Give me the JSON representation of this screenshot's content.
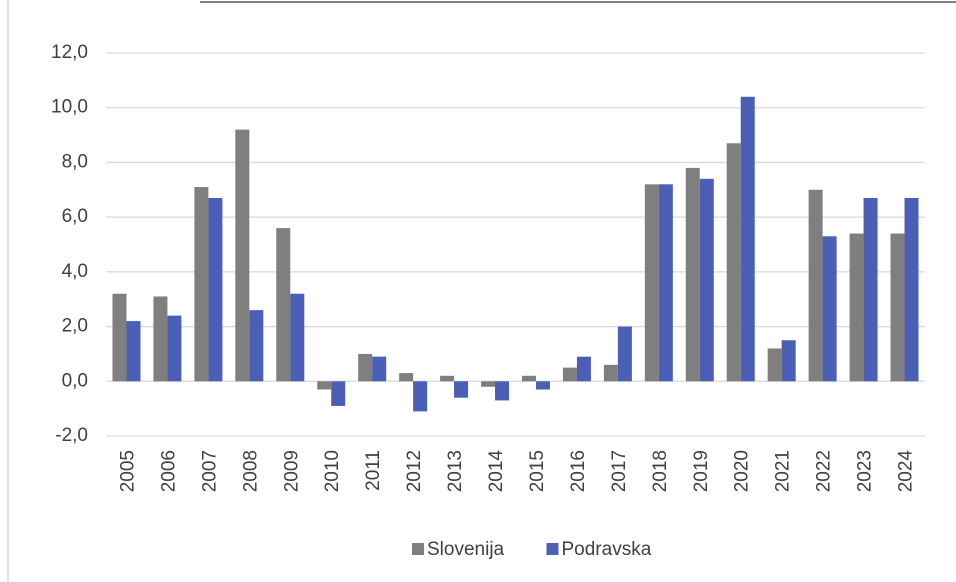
{
  "chart_data": {
    "type": "bar",
    "categories": [
      "2005",
      "2006",
      "2007",
      "2008",
      "2009",
      "2010",
      "2011",
      "2012",
      "2013",
      "2014",
      "2015",
      "2016",
      "2017",
      "2018",
      "2019",
      "2020",
      "2021",
      "2022",
      "2023",
      "2024"
    ],
    "series": [
      {
        "name": "Slovenija",
        "color": "#7f7f7f",
        "values": [
          3.2,
          3.1,
          7.1,
          9.2,
          5.6,
          -0.3,
          1.0,
          0.3,
          0.2,
          -0.2,
          0.2,
          0.5,
          0.6,
          7.2,
          7.8,
          8.7,
          1.2,
          7.0,
          5.4,
          5.4
        ]
      },
      {
        "name": "Podravska",
        "color": "#4a5fb5",
        "values": [
          2.2,
          2.4,
          6.7,
          2.6,
          3.2,
          -0.9,
          0.9,
          -1.1,
          -0.6,
          -0.7,
          -0.3,
          0.9,
          2.0,
          7.2,
          7.4,
          10.4,
          1.5,
          5.3,
          6.7,
          6.7
        ]
      }
    ],
    "ylim": [
      -2,
      12
    ],
    "yticks": [
      {
        "value": -2,
        "label": "-2,0"
      },
      {
        "value": 0,
        "label": "0,0"
      },
      {
        "value": 2,
        "label": "2,0"
      },
      {
        "value": 4,
        "label": "4,0"
      },
      {
        "value": 6,
        "label": "6,0"
      },
      {
        "value": 8,
        "label": "8,0"
      },
      {
        "value": 10,
        "label": "10,0"
      },
      {
        "value": 12,
        "label": "12,0"
      }
    ],
    "grid": true,
    "legend": "bottom"
  }
}
